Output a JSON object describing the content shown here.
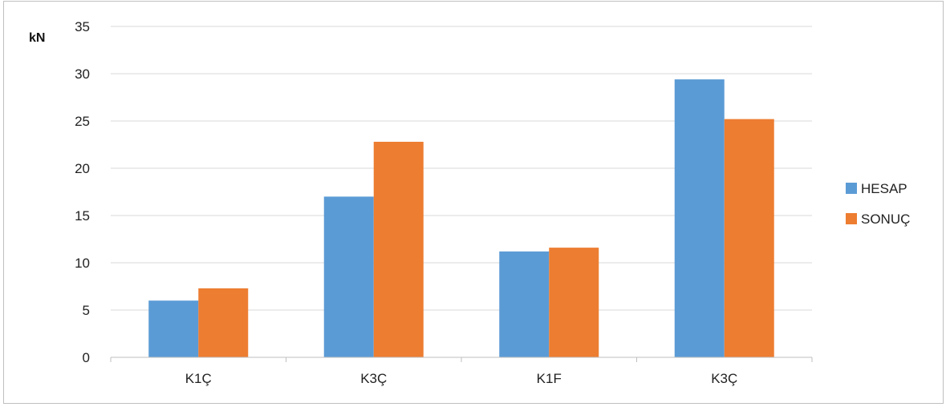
{
  "chart_data": {
    "type": "bar",
    "ylabel": "kN",
    "xlabel": "",
    "categories": [
      "K1Ç",
      "K3Ç",
      "K1F",
      "K3Ç"
    ],
    "series": [
      {
        "name": "HESAP",
        "values": [
          6.0,
          17.0,
          11.2,
          29.4
        ],
        "color": "#5b9bd5"
      },
      {
        "name": "SONUÇ",
        "values": [
          7.3,
          22.8,
          11.6,
          25.2
        ],
        "color": "#ed7d31"
      }
    ],
    "ylim": [
      0,
      35
    ],
    "yticks": [
      0,
      5,
      10,
      15,
      20,
      25,
      30,
      35
    ],
    "grid": true,
    "legend_position": "right"
  }
}
